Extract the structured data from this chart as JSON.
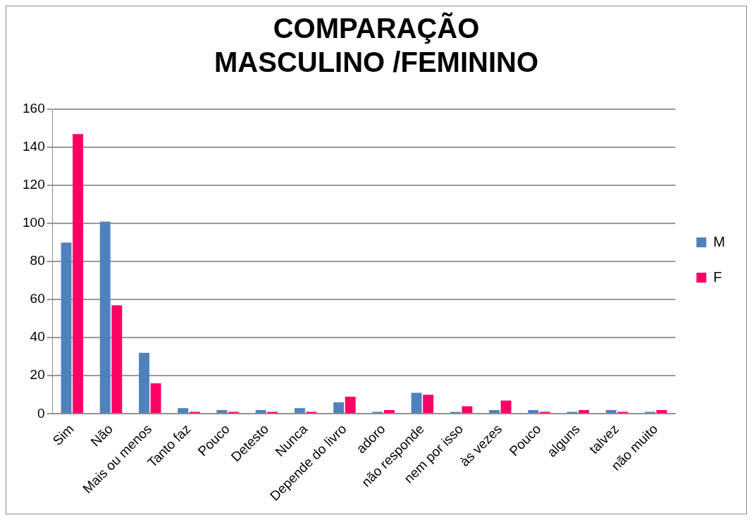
{
  "chart_data": {
    "type": "bar",
    "title": [
      "COMPARAÇÃO",
      "MASCULINO /FEMININO"
    ],
    "categories": [
      "Sim",
      "Não",
      "Mais ou menos",
      "Tanto faz",
      "Pouco",
      "Detesto",
      "Nunca",
      "Depende do livro",
      "adoro",
      "não responde",
      "nem por isso",
      "às vezes",
      "Pouco",
      "alguns",
      "talvez",
      "não muito"
    ],
    "series": [
      {
        "name": "M",
        "color": "#4f81bd",
        "values": [
          90,
          101,
          32,
          3,
          2,
          2,
          3,
          6,
          1,
          11,
          1,
          2,
          2,
          1,
          2,
          1
        ]
      },
      {
        "name": "F",
        "color": "#ff0066",
        "values": [
          147,
          57,
          16,
          1,
          1,
          1,
          1,
          9,
          2,
          10,
          4,
          7,
          1,
          2,
          1,
          2
        ]
      }
    ],
    "ylim": [
      0,
      160
    ],
    "yticks": [
      0,
      20,
      40,
      60,
      80,
      100,
      120,
      140,
      160
    ],
    "grid": "y",
    "legend": "right"
  }
}
